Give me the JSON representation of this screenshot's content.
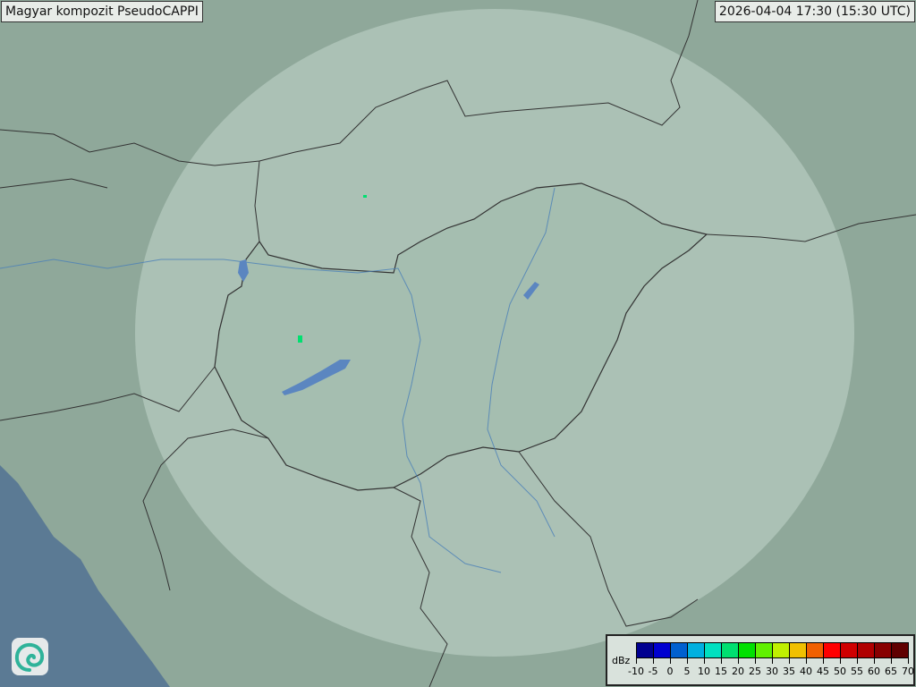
{
  "header": {
    "title": "Magyar kompozit  PseudoCAPPI",
    "timestamp": "2026-04-04 17:30 (15:30 UTC)"
  },
  "legend": {
    "unit": "dBz",
    "ticks": [
      "-10",
      "-5",
      "0",
      "5",
      "10",
      "15",
      "20",
      "25",
      "30",
      "35",
      "40",
      "45",
      "50",
      "55",
      "60",
      "65",
      "70"
    ],
    "colors": [
      "#000090",
      "#0000d0",
      "#0060d0",
      "#00b0e0",
      "#00e0c0",
      "#00e070",
      "#00e000",
      "#60f000",
      "#c0f000",
      "#f0c000",
      "#f06000",
      "#ff0000",
      "#d00000",
      "#b00000",
      "#880000",
      "#600000"
    ]
  },
  "map": {
    "land_color": "#8fa89a",
    "sea_color": "#5b7a94",
    "coverage_color": "#cfe0d6",
    "echo_color": "#00e070"
  },
  "logo": {
    "icon": "weather-service-swirl-logo"
  }
}
